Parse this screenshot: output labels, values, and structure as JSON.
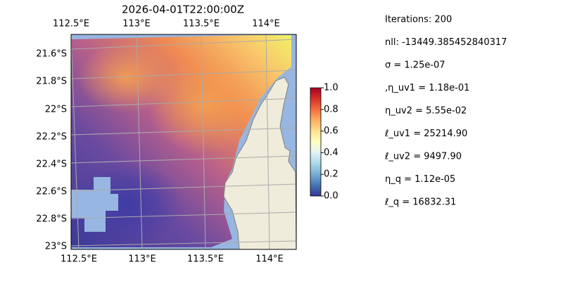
{
  "title": "2026-04-01T22:00:00Z",
  "map": {
    "lon_labels_top": [
      "112.5°E",
      "113°E",
      "113.5°E",
      "114°E"
    ],
    "lon_labels_bottom": [
      "112.5°E",
      "113°E",
      "113.5°E",
      "114°E"
    ],
    "lat_labels": [
      "21.6°S",
      "21.8°S",
      "22°S",
      "22.2°S",
      "22.4°S",
      "22.6°S",
      "22.8°S",
      "23°S"
    ]
  },
  "colorbar": {
    "range": [
      0,
      1
    ],
    "ticks": [
      {
        "value": 0,
        "label": "0.0"
      },
      {
        "value": 0.2,
        "label": "0.2"
      },
      {
        "value": 0.4,
        "label": "0.4"
      },
      {
        "value": 0.6,
        "label": "0.6"
      },
      {
        "value": 0.8,
        "label": "0.8"
      },
      {
        "value": 1,
        "label": "1.0"
      }
    ]
  },
  "info": [
    "Iterations: 200",
    "nll: -13449.385452840317",
    "σ = 1.25e-07",
    ",η_uv1 = 1.18e-01",
    "η_uv2 = 5.55e-02",
    "ℓ_uv1 = 25214.90",
    "ℓ_uv2 = 9497.90",
    "η_q = 1.12e-05",
    "ℓ_q = 16832.31"
  ]
}
